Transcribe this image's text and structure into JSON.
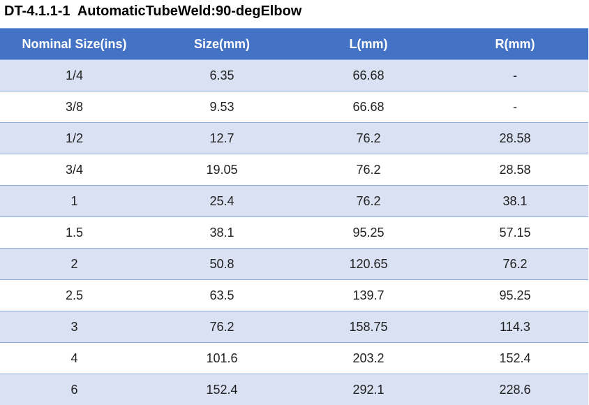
{
  "header": {
    "title": "DT-4.1.1-1  AutomaticTubeWeld:90-degElbow"
  },
  "table": {
    "columns": [
      "Nominal Size(ins)",
      "Size(mm)",
      "L(mm)",
      "R(mm)"
    ],
    "rows": [
      [
        "1/4",
        "6.35",
        "66.68",
        "-"
      ],
      [
        "3/8",
        "9.53",
        "66.68",
        "-"
      ],
      [
        "1/2",
        "12.7",
        "76.2",
        "28.58"
      ],
      [
        "3/4",
        "19.05",
        "76.2",
        "28.58"
      ],
      [
        "1",
        "25.4",
        "76.2",
        "38.1"
      ],
      [
        "1.5",
        "38.1",
        "95.25",
        "57.15"
      ],
      [
        "2",
        "50.8",
        "120.65",
        "76.2"
      ],
      [
        "2.5",
        "63.5",
        "139.7",
        "95.25"
      ],
      [
        "3",
        "76.2",
        "158.75",
        "114.3"
      ],
      [
        "4",
        "101.6",
        "203.2",
        "152.4"
      ],
      [
        "6",
        "152.4",
        "292.1",
        "228.6"
      ]
    ]
  }
}
